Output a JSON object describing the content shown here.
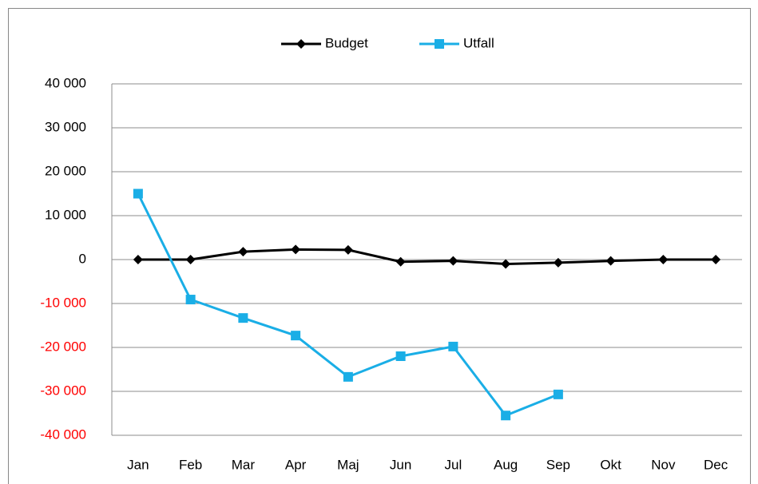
{
  "chart_data": {
    "type": "line",
    "categories": [
      "Jan",
      "Feb",
      "Mar",
      "Apr",
      "Maj",
      "Jun",
      "Jul",
      "Aug",
      "Sep",
      "Okt",
      "Nov",
      "Dec"
    ],
    "series": [
      {
        "name": "Budget",
        "color": "#000000",
        "marker": "diamond",
        "values": [
          0,
          0,
          1800,
          2300,
          2200,
          -500,
          -300,
          -1000,
          -700,
          -300,
          0,
          0
        ]
      },
      {
        "name": "Utfall",
        "color": "#1aaee6",
        "marker": "square",
        "values": [
          15000,
          -9100,
          -13300,
          -17300,
          -26700,
          -22000,
          -19800,
          -35500,
          -30700,
          null,
          null,
          null
        ]
      }
    ],
    "ylim": [
      -40000,
      40000
    ],
    "yticks": [
      {
        "value": -40000,
        "label": "-40 000"
      },
      {
        "value": -30000,
        "label": "-30 000"
      },
      {
        "value": -20000,
        "label": "-20 000"
      },
      {
        "value": -10000,
        "label": "-10 000"
      },
      0,
      {
        "value": 10000,
        "label": "10 000"
      },
      {
        "value": 20000,
        "label": "20 000"
      },
      {
        "value": 30000,
        "label": "30 000"
      },
      {
        "value": 40000,
        "label": "40 000"
      }
    ],
    "negative_tick_color": "#ff0000",
    "grid": true,
    "legend": "top"
  }
}
